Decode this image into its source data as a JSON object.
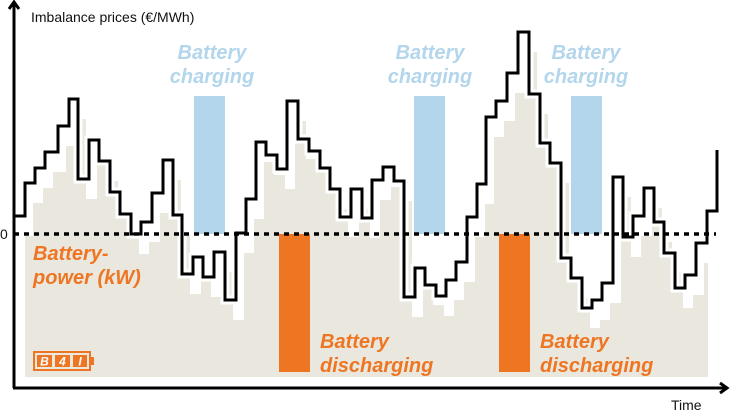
{
  "axes": {
    "y_label": "Imbalance prices (€/MWh)",
    "x_label": "Time",
    "zero_label": "0"
  },
  "labels": {
    "battery_power": [
      "Battery-",
      "power (kW)"
    ],
    "charging": [
      "Battery",
      "charging"
    ],
    "discharging": [
      "Battery",
      "discharging"
    ]
  },
  "logo": {
    "text": "B4I"
  },
  "colors": {
    "charging": "#b3d6ec",
    "discharging": "#ee7623",
    "battery_power_area": "#eae8de",
    "price_line": "#000000"
  }
}
